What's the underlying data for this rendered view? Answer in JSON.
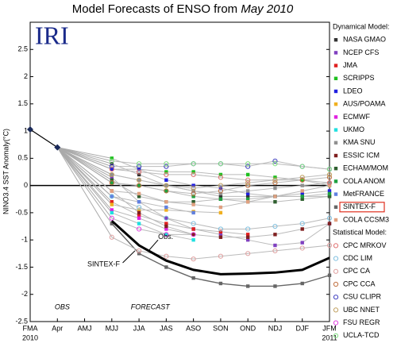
{
  "chart_data": {
    "type": "line",
    "title": "Model Forecasts of ENSO from",
    "title_date": "May 2010",
    "logo": "IRI",
    "y_label": "NINO3.4 SST Anomaly(°C)",
    "categories": [
      "FMA",
      "Apr",
      "AMJ",
      "MJJ",
      "JJA",
      "JAS",
      "ASO",
      "SON",
      "OND",
      "NDJ",
      "DJF",
      "JFM"
    ],
    "years": [
      {
        "index": 0,
        "label": "2010"
      },
      {
        "index": 11,
        "label": "2011"
      }
    ],
    "phase_labels": [
      "OBS",
      "FORECAST"
    ],
    "ylim": [
      -2.5,
      3
    ],
    "yticks": [
      -2.5,
      -2,
      -1.5,
      -1,
      -0.5,
      0,
      0.5,
      1,
      1.5,
      2,
      2.5
    ],
    "grid": false,
    "observed": [
      1.03,
      0.7,
      null,
      null,
      null,
      null,
      null,
      null,
      null,
      null,
      null,
      null
    ],
    "obs_line": {
      "name": "Obs.",
      "values": [
        null,
        null,
        null,
        -0.65,
        -1.1,
        -1.38,
        -1.55,
        -1.63,
        -1.62,
        -1.6,
        -1.55,
        -1.33
      ]
    },
    "annotation": "SINTEX-F",
    "legend_groups": [
      "Dynamical Model:",
      "Statistical Model:"
    ],
    "series": [
      {
        "name": "NASA GMAO",
        "group": 0,
        "color": "#333333",
        "values": [
          null,
          null,
          null,
          0.4,
          0.2,
          0.0,
          -0.1,
          -0.2,
          -0.2,
          -0.2,
          -0.2,
          -0.2
        ]
      },
      {
        "name": "NCEP CFS",
        "group": 0,
        "color": "#8040c0",
        "values": [
          null,
          null,
          null,
          0.15,
          -0.3,
          -0.6,
          -0.8,
          -0.9,
          -1.0,
          -1.1,
          -1.05,
          -0.7
        ]
      },
      {
        "name": "JMA",
        "group": 0,
        "color": "#e02020",
        "values": [
          null,
          null,
          null,
          -0.3,
          -0.55,
          -0.7,
          -0.8,
          -0.85,
          -0.9,
          null,
          null,
          null
        ]
      },
      {
        "name": "SCRIPPS",
        "group": 0,
        "color": "#20c020",
        "values": [
          null,
          null,
          null,
          0.5,
          0.3,
          0.25,
          0.25,
          0.2,
          0.2,
          0.15,
          0.1,
          0.0
        ]
      },
      {
        "name": "LDEO",
        "group": 0,
        "color": "#2020e0",
        "values": [
          null,
          null,
          null,
          0.3,
          0.3,
          0.1,
          0.0,
          -0.05,
          -0.15,
          -0.2,
          -0.15,
          -0.1
        ]
      },
      {
        "name": "AUS/POAMA",
        "group": 0,
        "color": "#f0b020",
        "values": [
          null,
          null,
          null,
          -0.35,
          -0.45,
          -0.45,
          -0.48,
          -0.5,
          null,
          null,
          null,
          null
        ]
      },
      {
        "name": "ECMWF",
        "group": 0,
        "color": "#e020e0",
        "values": [
          null,
          null,
          null,
          -0.45,
          -0.6,
          -0.8,
          -0.9,
          null,
          null,
          null,
          null,
          null
        ]
      },
      {
        "name": "UKMO",
        "group": 0,
        "color": "#20e0e0",
        "values": [
          null,
          null,
          null,
          -0.5,
          -0.7,
          -0.9,
          -1.0,
          null,
          null,
          null,
          null,
          null
        ]
      },
      {
        "name": "KMA SNU",
        "group": 0,
        "color": "#909090",
        "values": [
          null,
          null,
          null,
          0.2,
          0.1,
          0.0,
          -0.1,
          -0.15,
          -0.1,
          -0.05,
          0.0,
          0.05
        ]
      },
      {
        "name": "ESSIC ICM",
        "group": 0,
        "color": "#802020",
        "values": [
          null,
          null,
          null,
          -0.1,
          -0.5,
          -0.75,
          -0.9,
          -0.95,
          -0.95,
          -0.9,
          -0.8,
          -0.7
        ]
      },
      {
        "name": "ECHAM/MOM",
        "group": 0,
        "color": "#306030",
        "values": [
          null,
          null,
          null,
          0.1,
          -0.2,
          -0.3,
          -0.3,
          -0.25,
          -0.3,
          -0.3,
          -0.25,
          -0.2
        ]
      },
      {
        "name": "COLA ANOM",
        "group": 0,
        "color": "#20a040",
        "values": [
          null,
          null,
          null,
          0.05,
          0.0,
          -0.1,
          -0.2,
          -0.25,
          -0.25,
          -0.2,
          -0.2,
          -0.15
        ]
      },
      {
        "name": "MetFRANCE",
        "group": 0,
        "color": "#6080e0",
        "values": [
          null,
          null,
          null,
          -0.2,
          -0.3,
          -0.4,
          -0.5,
          null,
          null,
          null,
          null,
          null
        ]
      },
      {
        "name": "SINTEX-F",
        "group": 0,
        "color": "#666666",
        "highlight": true,
        "values": [
          null,
          null,
          null,
          -0.7,
          -1.25,
          -1.5,
          -1.7,
          -1.8,
          -1.85,
          -1.85,
          -1.8,
          -1.65
        ]
      },
      {
        "name": "COLA CCSM3",
        "group": 0,
        "color": "#e0a080",
        "values": [
          null,
          null,
          null,
          -0.1,
          -0.15,
          -0.3,
          -0.35,
          -0.4,
          -0.3,
          -0.2,
          -0.1,
          0.0
        ]
      },
      {
        "name": "CPC MRKOV",
        "group": 1,
        "color": "#e07070",
        "values": [
          null,
          null,
          null,
          0.3,
          0.25,
          0.2,
          0.2,
          0.15,
          0.1,
          0.1,
          0.1,
          0.05
        ]
      },
      {
        "name": "CDC LIM",
        "group": 1,
        "color": "#80c0e0",
        "values": [
          null,
          null,
          null,
          -0.2,
          -0.4,
          -0.6,
          -0.7,
          -0.8,
          -0.8,
          -0.75,
          -0.7,
          -0.6
        ]
      },
      {
        "name": "CPC CA",
        "group": 1,
        "color": "#e0a0a0",
        "values": [
          null,
          null,
          null,
          -0.95,
          -1.2,
          -1.3,
          -1.35,
          -1.3,
          -1.25,
          -1.2,
          -1.15,
          -1.1
        ]
      },
      {
        "name": "CPC CCA",
        "group": 1,
        "color": "#c07040",
        "values": [
          null,
          null,
          null,
          0.05,
          0.0,
          -0.1,
          -0.15,
          -0.1,
          0.0,
          0.05,
          0.1,
          0.15
        ]
      },
      {
        "name": "CSU CLIPR",
        "group": 1,
        "color": "#4040c0",
        "values": [
          null,
          null,
          null,
          0.35,
          0.35,
          0.35,
          0.4,
          0.4,
          0.35,
          0.45,
          0.35,
          0.3
        ]
      },
      {
        "name": "UBC NNET",
        "group": 1,
        "color": "#c0a060",
        "values": [
          null,
          null,
          null,
          0.2,
          0.1,
          0.0,
          -0.05,
          0.0,
          0.05,
          0.1,
          0.15,
          0.2
        ]
      },
      {
        "name": "FSU REGR",
        "group": 1,
        "color": "#e040e0",
        "values": [
          null,
          null,
          null,
          -0.6,
          -0.8,
          -0.9,
          -0.9,
          null,
          null,
          null,
          null,
          null
        ]
      },
      {
        "name": "UCLA-TCD",
        "group": 1,
        "color": "#80e080",
        "values": [
          null,
          null,
          null,
          0.45,
          0.4,
          0.4,
          0.4,
          0.4,
          0.4,
          0.4,
          0.35,
          0.3
        ]
      }
    ]
  }
}
